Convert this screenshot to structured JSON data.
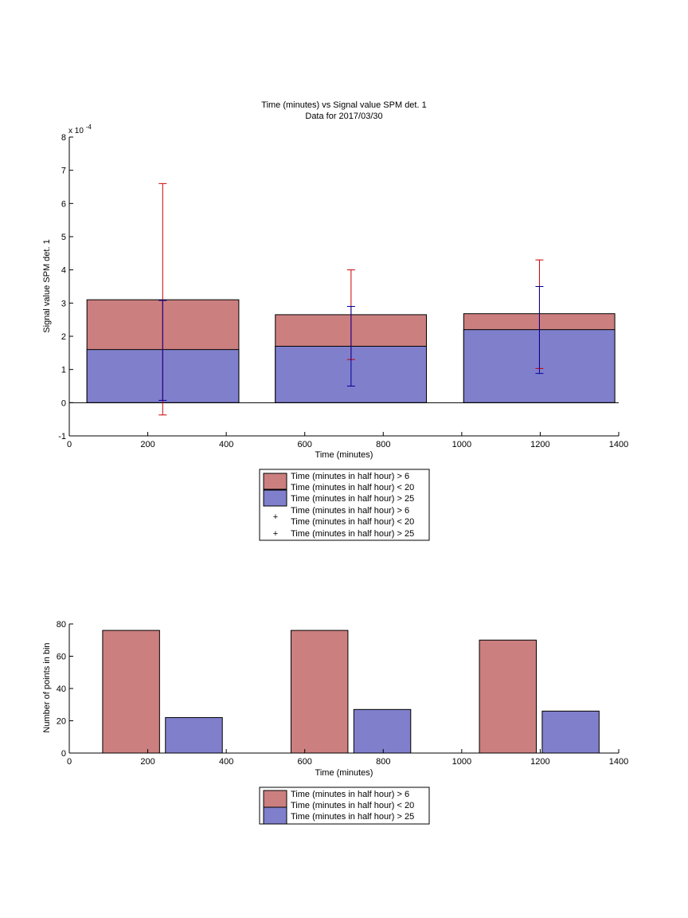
{
  "chart_data": [
    {
      "type": "bar",
      "title": "Time (minutes) vs Signal value SPM det. 1",
      "subtitle": "Data for 2017/03/30",
      "xlabel": "Time (minutes)",
      "ylabel": "Signal value SPM det. 1",
      "y_exponent_base": "x 10",
      "y_exponent_power": "-4",
      "xlim": [
        0,
        1400
      ],
      "ylim": [
        -1,
        8
      ],
      "xticks": [
        "0",
        "200",
        "400",
        "600",
        "800",
        "1000",
        "1200",
        "1400"
      ],
      "yticks": [
        "-1",
        "0",
        "1",
        "2",
        "3",
        "4",
        "5",
        "6",
        "7",
        "8"
      ],
      "grid": false,
      "legend_position": "below",
      "bars": [
        {
          "series": "Time (minutes in half hour) > 6 Time (minutes in half hour) < 20",
          "x_from": 45,
          "x_to": 432,
          "value": 3.1
        },
        {
          "series": "Time (minutes in half hour) > 25",
          "x_from": 45,
          "x_to": 432,
          "value": 1.6
        },
        {
          "series": "Time (minutes in half hour) > 6 Time (minutes in half hour) < 20",
          "x_from": 525,
          "x_to": 910,
          "value": 2.65
        },
        {
          "series": "Time (minutes in half hour) > 25",
          "x_from": 525,
          "x_to": 910,
          "value": 1.7
        },
        {
          "series": "Time (minutes in half hour) > 6 Time (minutes in half hour) < 20",
          "x_from": 1005,
          "x_to": 1390,
          "value": 2.68
        },
        {
          "series": "Time (minutes in half hour) > 25",
          "x_from": 1005,
          "x_to": 1390,
          "value": 2.2
        }
      ],
      "errorbars": [
        {
          "series": "red",
          "x": 238,
          "low": -0.37,
          "high": 6.6
        },
        {
          "series": "blue",
          "x": 238,
          "low": 0.07,
          "high": 3.08
        },
        {
          "series": "red",
          "x": 718,
          "low": 1.3,
          "high": 4.0
        },
        {
          "series": "blue",
          "x": 718,
          "low": 0.5,
          "high": 2.9
        },
        {
          "series": "red",
          "x": 1198,
          "low": 1.03,
          "high": 4.3
        },
        {
          "series": "blue",
          "x": 1198,
          "low": 0.88,
          "high": 3.5
        }
      ],
      "legend": [
        {
          "label_lines": [
            "Time (minutes in half hour) > 6",
            "Time (minutes in half hour) < 20"
          ],
          "kind": "patch",
          "color": "#cc7f7f"
        },
        {
          "label_lines": [
            "Time (minutes in half hour) > 25"
          ],
          "kind": "patch",
          "color": "#807fcc"
        },
        {
          "label_lines": [
            "Time (minutes in half hour) > 6",
            "Time (minutes in half hour) < 20"
          ],
          "kind": "marker",
          "color": "#cc0000"
        },
        {
          "label_lines": [
            "Time (minutes in half hour) > 25"
          ],
          "kind": "marker",
          "color": "#000099"
        }
      ]
    },
    {
      "type": "bar",
      "xlabel": "Time (minutes)",
      "ylabel": "Number of points in bin",
      "xlim": [
        0,
        1400
      ],
      "ylim": [
        0,
        80
      ],
      "xticks": [
        "0",
        "200",
        "400",
        "600",
        "800",
        "1000",
        "1200",
        "1400"
      ],
      "yticks": [
        "0",
        "20",
        "40",
        "60",
        "80"
      ],
      "grid": false,
      "legend_position": "below",
      "bars": [
        {
          "series": "Time (minutes in half hour) > 6 Time (minutes in half hour) < 20",
          "x_from": 85,
          "x_to": 230,
          "value": 76
        },
        {
          "series": "Time (minutes in half hour) > 25",
          "x_from": 245,
          "x_to": 390,
          "value": 22
        },
        {
          "series": "Time (minutes in half hour) > 6 Time (minutes in half hour) < 20",
          "x_from": 565,
          "x_to": 710,
          "value": 76
        },
        {
          "series": "Time (minutes in half hour) > 25",
          "x_from": 725,
          "x_to": 870,
          "value": 27
        },
        {
          "series": "Time (minutes in half hour) > 6 Time (minutes in half hour) < 20",
          "x_from": 1045,
          "x_to": 1190,
          "value": 70
        },
        {
          "series": "Time (minutes in half hour) > 25",
          "x_from": 1205,
          "x_to": 1350,
          "value": 26
        }
      ],
      "legend": [
        {
          "label_lines": [
            "Time (minutes in half hour) > 6",
            "Time (minutes in half hour) < 20"
          ],
          "kind": "patch",
          "color": "#cc7f7f"
        },
        {
          "label_lines": [
            "Time (minutes in half hour) > 25"
          ],
          "kind": "patch",
          "color": "#807fcc"
        }
      ]
    }
  ],
  "colors": {
    "red_fill": "#cc7f7f",
    "blue_fill": "#807fcc",
    "red_error": "#cc0000",
    "blue_error": "#000099"
  }
}
